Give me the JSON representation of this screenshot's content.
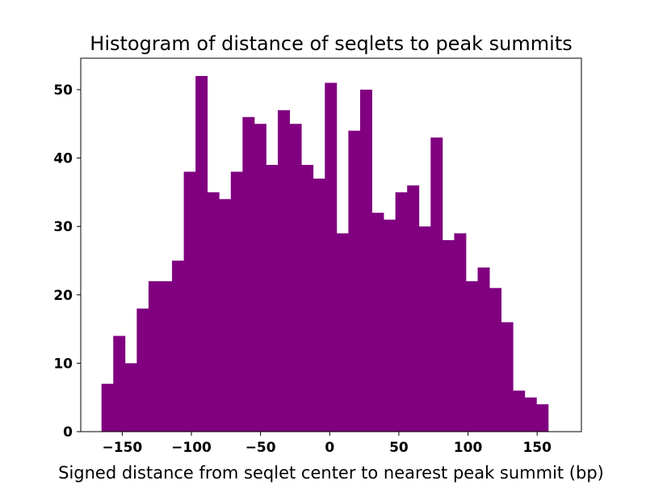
{
  "chart_data": {
    "type": "bar",
    "title": "Histogram of distance of seqlets to peak summits",
    "xlabel": "Signed distance from seqlet center to nearest peak summit (bp)",
    "ylabel": "",
    "bar_color": "#800080",
    "xlim": [
      -180,
      182
    ],
    "ylim": [
      0,
      54.6
    ],
    "bin_start": -165,
    "bin_width": 8.5,
    "values": [
      7,
      14,
      10,
      18,
      22,
      22,
      25,
      38,
      52,
      35,
      34,
      38,
      46,
      45,
      39,
      47,
      45,
      39,
      37,
      51,
      29,
      44,
      50,
      32,
      31,
      35,
      36,
      30,
      43,
      28,
      29,
      22,
      24,
      21,
      16,
      6,
      5,
      4
    ],
    "x_ticks": [
      {
        "value": -150,
        "label": "−150"
      },
      {
        "value": -100,
        "label": "−100"
      },
      {
        "value": -50,
        "label": "−50"
      },
      {
        "value": 0,
        "label": "0"
      },
      {
        "value": 50,
        "label": "50"
      },
      {
        "value": 100,
        "label": "100"
      },
      {
        "value": 150,
        "label": "150"
      }
    ],
    "y_ticks": [
      {
        "value": 0,
        "label": "0"
      },
      {
        "value": 10,
        "label": "10"
      },
      {
        "value": 20,
        "label": "20"
      },
      {
        "value": 30,
        "label": "30"
      },
      {
        "value": 40,
        "label": "40"
      },
      {
        "value": 50,
        "label": "50"
      }
    ],
    "grid": false,
    "legend": "none"
  }
}
